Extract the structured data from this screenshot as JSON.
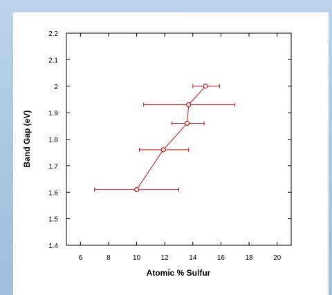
{
  "chart_data": {
    "type": "scatter",
    "title": "",
    "xlabel": "Atomic % Sulfur",
    "ylabel": "Band Gap (eV)",
    "xlim": [
      5,
      21
    ],
    "ylim": [
      1.4,
      2.2
    ],
    "xticks": [
      6,
      8,
      10,
      12,
      14,
      16,
      18,
      20
    ],
    "yticks": [
      1.4,
      1.5,
      1.6,
      1.7,
      1.8,
      1.9,
      2,
      2.1,
      2.2
    ],
    "grid": false,
    "colors": {
      "series": "#cc1111",
      "axis": "#000000"
    },
    "series": [
      {
        "marker": "open-circle",
        "line": true,
        "points": [
          {
            "x": 10.0,
            "y": 1.61,
            "xerr_low": 7.0,
            "xerr_high": 13.0
          },
          {
            "x": 11.9,
            "y": 1.76,
            "xerr_low": 10.2,
            "xerr_high": 13.7
          },
          {
            "x": 13.6,
            "y": 1.86,
            "xerr_low": 12.5,
            "xerr_high": 14.8
          },
          {
            "x": 13.7,
            "y": 1.93,
            "xerr_low": 10.5,
            "xerr_high": 17.0
          },
          {
            "x": 14.9,
            "y": 2.0,
            "xerr_low": 14.0,
            "xerr_high": 15.9
          }
        ]
      }
    ]
  }
}
